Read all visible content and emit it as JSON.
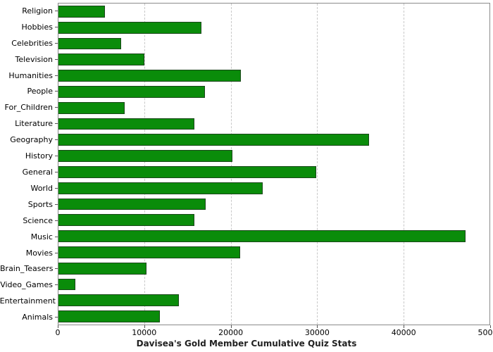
{
  "chart_data": {
    "type": "bar",
    "orientation": "horizontal",
    "title": "Davisea's Gold Member Cumulative Quiz Stats",
    "categories": [
      "Religion",
      "Hobbies",
      "Celebrities",
      "Television",
      "Humanities",
      "People",
      "For_Children",
      "Literature",
      "Geography",
      "History",
      "General",
      "World",
      "Sports",
      "Science",
      "Music",
      "Movies",
      "Brain_Teasers",
      "Video_Games",
      "Entertainment",
      "Animals"
    ],
    "values": [
      5400,
      16600,
      7300,
      10000,
      21200,
      17000,
      7700,
      15800,
      36000,
      20200,
      29900,
      23700,
      17100,
      15800,
      47200,
      21100,
      10200,
      2000,
      14000,
      11800
    ],
    "xlabel": "",
    "ylabel": "",
    "xlim": [
      0,
      50000
    ],
    "xticks": [
      0,
      10000,
      20000,
      30000,
      40000,
      50000
    ],
    "xtick_labels": [
      "0",
      "10000",
      "20000",
      "30000",
      "40000",
      "50000"
    ],
    "grid": true,
    "legend": "none",
    "bar_color": "#0a8c0a",
    "bar_border_color": "#1a471a",
    "gridline_color": "#c8c8c8"
  }
}
